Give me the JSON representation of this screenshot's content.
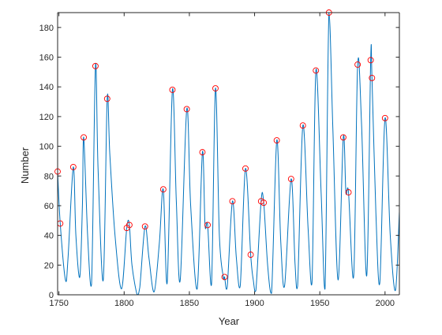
{
  "chart_data": {
    "type": "line",
    "title": "",
    "xlabel": "Year",
    "ylabel": "Number",
    "xlim": [
      1749,
      2011
    ],
    "ylim": [
      0,
      190
    ],
    "xticks": [
      1750,
      1800,
      1850,
      1900,
      1950,
      2000
    ],
    "yticks": [
      0,
      20,
      40,
      60,
      80,
      100,
      120,
      140,
      160,
      180
    ],
    "grid": false,
    "legend": "none",
    "colors": {
      "line": "#0072BD",
      "markers": "#FF0000",
      "axes": "#262626"
    },
    "series": [
      {
        "style": "line",
        "x": [
          1749,
          1751,
          1755,
          1757,
          1761,
          1763,
          1766,
          1768,
          1769,
          1772,
          1775,
          1778,
          1780,
          1784,
          1787,
          1789,
          1793,
          1798,
          1802,
          1804,
          1806,
          1810,
          1812,
          1816,
          1819,
          1823,
          1827,
          1830,
          1833,
          1837,
          1840,
          1843,
          1848,
          1851,
          1856,
          1860,
          1862,
          1864,
          1867,
          1870,
          1873,
          1876,
          1877,
          1879,
          1883,
          1886,
          1889,
          1893,
          1897,
          1899,
          1901,
          1905,
          1907,
          1910,
          1913,
          1917,
          1920,
          1923,
          1928,
          1931,
          1933,
          1937,
          1941,
          1944,
          1947,
          1951,
          1954,
          1957,
          1960,
          1964,
          1968,
          1970,
          1972,
          1976,
          1979,
          1982,
          1986,
          1989,
          1990,
          1993,
          1996,
          2000,
          2004,
          2008,
          2011
        ],
        "y": [
          83,
          48,
          10,
          25,
          86,
          40,
          12,
          60,
          106,
          40,
          7,
          154,
          85,
          10,
          132,
          95,
          40,
          4,
          45,
          47,
          20,
          0,
          5,
          46,
          25,
          2,
          35,
          71,
          8,
          138,
          63,
          10,
          125,
          60,
          4,
          96,
          47,
          47,
          7,
          139,
          40,
          12,
          12,
          5,
          63,
          25,
          6,
          85,
          27,
          10,
          3,
          63,
          62,
          20,
          1,
          104,
          37,
          6,
          78,
          21,
          6,
          114,
          45,
          8,
          151,
          69,
          4,
          190,
          112,
          10,
          106,
          69,
          69,
          13,
          155,
          115,
          13,
          158,
          146,
          55,
          8,
          119,
          40,
          3,
          56
        ]
      },
      {
        "style": "markers",
        "x": [
          1749,
          1751,
          1761,
          1769,
          1778,
          1787,
          1802,
          1804,
          1816,
          1830,
          1837,
          1848,
          1860,
          1864,
          1870,
          1877,
          1883,
          1893,
          1897,
          1905,
          1907,
          1917,
          1928,
          1937,
          1947,
          1957,
          1968,
          1972,
          1979,
          1989,
          1990,
          2000
        ],
        "y": [
          83,
          48,
          86,
          106,
          154,
          132,
          45,
          47,
          46,
          71,
          138,
          125,
          96,
          47,
          139,
          12,
          63,
          85,
          27,
          63,
          62,
          104,
          78,
          114,
          151,
          190,
          106,
          69,
          155,
          158,
          146,
          119
        ]
      }
    ]
  }
}
